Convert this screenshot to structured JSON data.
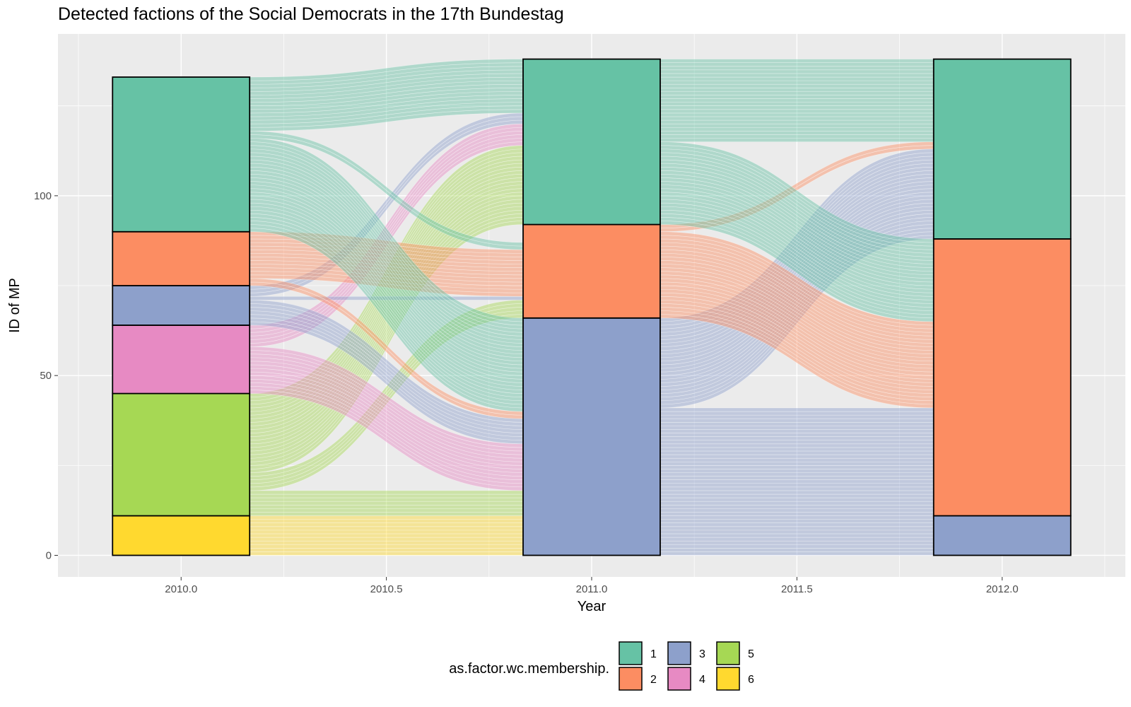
{
  "chart_data": {
    "type": "alluvial",
    "title": "Detected factions of the Social Democrats in the 17th Bundestag",
    "xlabel": "Year",
    "ylabel": "ID of MP",
    "x_ticks": [
      "2010.0",
      "2010.5",
      "2011.0",
      "2011.5",
      "2012.0"
    ],
    "x_tick_values": [
      2010.0,
      2010.5,
      2011.0,
      2011.5,
      2012.0
    ],
    "y_ticks": [
      "0",
      "50",
      "100"
    ],
    "y_tick_values": [
      0,
      50,
      100
    ],
    "xlim": [
      2009.7,
      2012.3
    ],
    "ylim": [
      -6,
      145
    ],
    "grid": true,
    "legend_position": "bottom",
    "legend_title": "as.factor.wc.membership.",
    "categories": [
      "1",
      "2",
      "3",
      "4",
      "5",
      "6"
    ],
    "colors": {
      "1": "#66c2a5",
      "2": "#fc8d62",
      "3": "#8da0cb",
      "4": "#e78ac3",
      "5": "#a6d854",
      "6": "#ffd92f"
    },
    "strata": [
      {
        "x": 2010.0,
        "groups": [
          {
            "cluster": "6",
            "count": 11
          },
          {
            "cluster": "5",
            "count": 34
          },
          {
            "cluster": "4",
            "count": 19
          },
          {
            "cluster": "3",
            "count": 11
          },
          {
            "cluster": "2",
            "count": 15
          },
          {
            "cluster": "1",
            "count": 43
          }
        ]
      },
      {
        "x": 2011.0,
        "groups": [
          {
            "cluster": "3",
            "count": 66
          },
          {
            "cluster": "2",
            "count": 26
          },
          {
            "cluster": "1",
            "count": 46
          }
        ]
      },
      {
        "x": 2012.0,
        "groups": [
          {
            "cluster": "3",
            "count": 11
          },
          {
            "cluster": "2",
            "count": 77
          },
          {
            "cluster": "1",
            "count": 50
          }
        ]
      }
    ],
    "flows": [
      {
        "from_x": 2010.0,
        "to_x": 2011.0,
        "from": "6",
        "to": "3",
        "count": 11
      },
      {
        "from_x": 2010.0,
        "to_x": 2011.0,
        "from": "5",
        "to": "3",
        "count": 7
      },
      {
        "from_x": 2010.0,
        "to_x": 2011.0,
        "from": "5",
        "to": "2",
        "count": 5
      },
      {
        "from_x": 2010.0,
        "to_x": 2011.0,
        "from": "5",
        "to": "1",
        "count": 22
      },
      {
        "from_x": 2010.0,
        "to_x": 2011.0,
        "from": "4",
        "to": "3",
        "count": 13
      },
      {
        "from_x": 2010.0,
        "to_x": 2011.0,
        "from": "4",
        "to": "1",
        "count": 6
      },
      {
        "from_x": 2010.0,
        "to_x": 2011.0,
        "from": "3",
        "to": "3",
        "count": 7
      },
      {
        "from_x": 2010.0,
        "to_x": 2011.0,
        "from": "3",
        "to": "2",
        "count": 1
      },
      {
        "from_x": 2010.0,
        "to_x": 2011.0,
        "from": "3",
        "to": "1",
        "count": 3
      },
      {
        "from_x": 2010.0,
        "to_x": 2011.0,
        "from": "2",
        "to": "3",
        "count": 2
      },
      {
        "from_x": 2010.0,
        "to_x": 2011.0,
        "from": "2",
        "to": "2",
        "count": 13
      },
      {
        "from_x": 2010.0,
        "to_x": 2011.0,
        "from": "1",
        "to": "3",
        "count": 26
      },
      {
        "from_x": 2010.0,
        "to_x": 2011.0,
        "from": "1",
        "to": "2",
        "count": 2
      },
      {
        "from_x": 2010.0,
        "to_x": 2011.0,
        "from": "1",
        "to": "1",
        "count": 15
      },
      {
        "from_x": 2011.0,
        "to_x": 2012.0,
        "from": "3",
        "to": "3",
        "count": 11
      },
      {
        "from_x": 2011.0,
        "to_x": 2012.0,
        "from": "3",
        "to": "2",
        "count": 30
      },
      {
        "from_x": 2011.0,
        "to_x": 2012.0,
        "from": "3",
        "to": "1",
        "count": 25
      },
      {
        "from_x": 2011.0,
        "to_x": 2012.0,
        "from": "2",
        "to": "2",
        "count": 24
      },
      {
        "from_x": 2011.0,
        "to_x": 2012.0,
        "from": "2",
        "to": "1",
        "count": 2
      },
      {
        "from_x": 2011.0,
        "to_x": 2012.0,
        "from": "1",
        "to": "2",
        "count": 23
      },
      {
        "from_x": 2011.0,
        "to_x": 2012.0,
        "from": "1",
        "to": "1",
        "count": 23
      }
    ]
  }
}
